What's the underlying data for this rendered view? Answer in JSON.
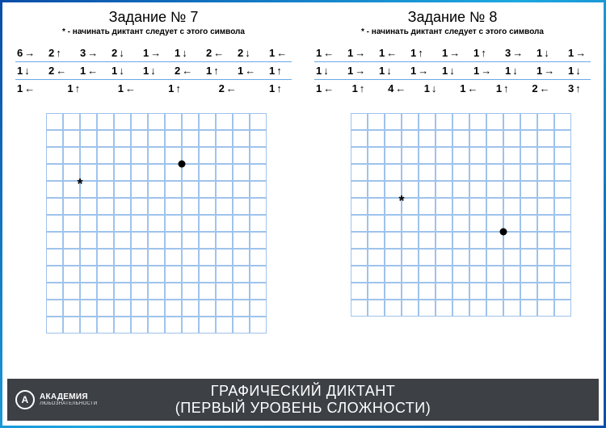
{
  "colors": {
    "grid_line": "#9fc3ec",
    "divider": "#6aa9e8",
    "footer_bg": "#3d4146",
    "text": "#000000",
    "footer_text": "#ffffff"
  },
  "arrows": {
    "left": "←",
    "right": "→",
    "up": "↑",
    "down": "↓"
  },
  "tasks": [
    {
      "title": "Задание № 7",
      "subtitle": "* - начинать диктант следует с этого символа",
      "rows": [
        {
          "divided": true,
          "cells": [
            {
              "n": "6",
              "d": "right"
            },
            {
              "n": "2",
              "d": "up"
            },
            {
              "n": "3",
              "d": "right"
            },
            {
              "n": "2",
              "d": "down"
            },
            {
              "n": "1",
              "d": "right"
            },
            {
              "n": "1",
              "d": "down"
            },
            {
              "n": "2",
              "d": "left"
            },
            {
              "n": "2",
              "d": "down"
            },
            {
              "n": "1",
              "d": "left"
            }
          ]
        },
        {
          "divided": true,
          "cells": [
            {
              "n": "1",
              "d": "down"
            },
            {
              "n": "2",
              "d": "left"
            },
            {
              "n": "1",
              "d": "left"
            },
            {
              "n": "1",
              "d": "down"
            },
            {
              "n": "1",
              "d": "down"
            },
            {
              "n": "2",
              "d": "left"
            },
            {
              "n": "1",
              "d": "up"
            },
            {
              "n": "1",
              "d": "left"
            },
            {
              "n": "1",
              "d": "up"
            }
          ]
        },
        {
          "divided": false,
          "cells": [
            {
              "n": "1",
              "d": "left"
            },
            {
              "n": "1",
              "d": "up"
            },
            {
              "n": "1",
              "d": "left"
            },
            {
              "n": "1",
              "d": "up"
            },
            {
              "n": "2",
              "d": "left"
            },
            {
              "n": "1",
              "d": "up"
            }
          ]
        }
      ],
      "grid": {
        "cols": 13,
        "rows": 13,
        "cell_size": 21,
        "star": {
          "col": 2,
          "row": 4
        },
        "dot": {
          "col": 8,
          "row": 3
        }
      }
    },
    {
      "title": "Задание № 8",
      "subtitle": "* - начинать диктант следует с этого символа",
      "rows": [
        {
          "divided": true,
          "cells": [
            {
              "n": "1",
              "d": "left"
            },
            {
              "n": "1",
              "d": "right"
            },
            {
              "n": "1",
              "d": "left"
            },
            {
              "n": "1",
              "d": "up"
            },
            {
              "n": "1",
              "d": "right"
            },
            {
              "n": "1",
              "d": "up"
            },
            {
              "n": "3",
              "d": "right"
            },
            {
              "n": "1",
              "d": "down"
            },
            {
              "n": "1",
              "d": "right"
            }
          ]
        },
        {
          "divided": true,
          "cells": [
            {
              "n": "1",
              "d": "down"
            },
            {
              "n": "1",
              "d": "right"
            },
            {
              "n": "1",
              "d": "down"
            },
            {
              "n": "1",
              "d": "right"
            },
            {
              "n": "1",
              "d": "down"
            },
            {
              "n": "1",
              "d": "right"
            },
            {
              "n": "1",
              "d": "down"
            },
            {
              "n": "1",
              "d": "right"
            },
            {
              "n": "1",
              "d": "down"
            }
          ]
        },
        {
          "divided": false,
          "cells": [
            {
              "n": "1",
              "d": "left"
            },
            {
              "n": "1",
              "d": "up"
            },
            {
              "n": "4",
              "d": "left"
            },
            {
              "n": "1",
              "d": "down"
            },
            {
              "n": "1",
              "d": "left"
            },
            {
              "n": "1",
              "d": "up"
            },
            {
              "n": "2",
              "d": "left"
            },
            {
              "n": "3",
              "d": "up"
            }
          ]
        }
      ],
      "grid": {
        "cols": 13,
        "rows": 12,
        "cell_size": 21,
        "star": {
          "col": 3,
          "row": 5
        },
        "dot": {
          "col": 9,
          "row": 7
        }
      }
    }
  ],
  "footer": {
    "logo_symbol": "А",
    "logo_main": "АКАДЕМИЯ",
    "logo_sub": "ЛЮБОЗНАТЕЛЬНОСТИ",
    "title1": "ГРАФИЧЕСКИЙ ДИКТАНТ",
    "title2": "(ПЕРВЫЙ УРОВЕНЬ СЛОЖНОСТИ)"
  }
}
